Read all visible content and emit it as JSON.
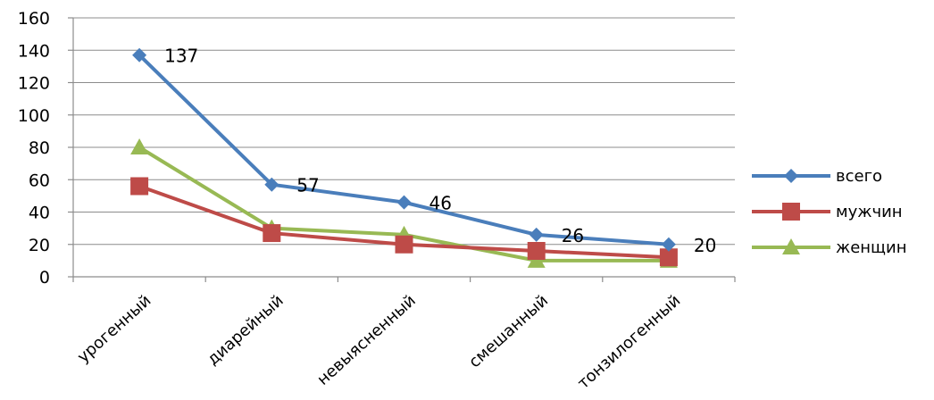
{
  "chart_data": {
    "type": "line",
    "categories": [
      "урогенный",
      "диарейный",
      "невыясненный",
      "смешанный",
      "тонзилогенный"
    ],
    "series": [
      {
        "name": "всего",
        "values": [
          137,
          57,
          46,
          26,
          20
        ],
        "color": "#4a7ebb",
        "marker": "diamond",
        "data_labels": [
          "137",
          "57",
          "46",
          "26",
          "20"
        ]
      },
      {
        "name": "мужчин",
        "values": [
          56,
          27,
          20,
          16,
          12
        ],
        "color": "#be4b48",
        "marker": "square"
      },
      {
        "name": "женщин",
        "values": [
          80,
          30,
          26,
          10,
          10
        ],
        "color": "#98b954",
        "marker": "triangle"
      }
    ],
    "y_ticks": [
      "0",
      "20",
      "40",
      "60",
      "80",
      "100",
      "120",
      "140",
      "160"
    ],
    "ylim": [
      0,
      160
    ],
    "grid": true,
    "legend_position": "right"
  }
}
